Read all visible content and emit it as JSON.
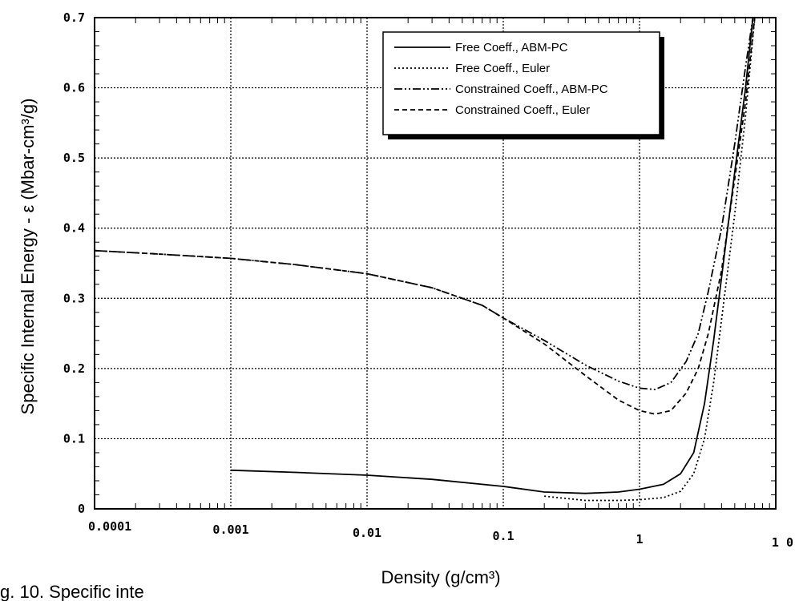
{
  "chart_data": {
    "type": "line",
    "xlabel": "Density (g/cm³)",
    "ylabel": "Specific Internal Energy - ε  (Mbar-cm³/g)",
    "xscale": "log",
    "xlim": [
      0.0001,
      10
    ],
    "ylim": [
      0,
      0.7
    ],
    "x_ticks": [
      0.0001,
      0.001,
      0.01,
      0.1,
      1,
      10
    ],
    "x_tick_labels": [
      "0.0001",
      "0.001",
      "0.01",
      "0.1",
      "1",
      "1 0"
    ],
    "y_ticks": [
      0,
      0.1,
      0.2,
      0.3,
      0.4,
      0.5,
      0.6,
      0.7
    ],
    "y_tick_labels": [
      "0",
      "0.1",
      "0.2",
      "0.3",
      "0.4",
      "0.5",
      "0.6",
      "0.7"
    ],
    "grid": true,
    "legend_position": "top-right",
    "caption_fragment": "g. 10.  Specific inte",
    "series": [
      {
        "name": "Free Coeff., ABM-PC",
        "style": "solid",
        "points": [
          [
            0.001,
            0.055
          ],
          [
            0.003,
            0.052
          ],
          [
            0.01,
            0.048
          ],
          [
            0.03,
            0.042
          ],
          [
            0.1,
            0.032
          ],
          [
            0.2,
            0.024
          ],
          [
            0.4,
            0.022
          ],
          [
            0.7,
            0.024
          ],
          [
            1,
            0.028
          ],
          [
            1.5,
            0.035
          ],
          [
            2,
            0.05
          ],
          [
            2.5,
            0.08
          ],
          [
            3,
            0.15
          ],
          [
            3.5,
            0.24
          ],
          [
            4,
            0.33
          ],
          [
            5,
            0.48
          ],
          [
            6,
            0.6
          ],
          [
            6.8,
            0.7
          ]
        ]
      },
      {
        "name": "Free Coeff., Euler",
        "style": "dotted",
        "points": [
          [
            0.2,
            0.018
          ],
          [
            0.4,
            0.012
          ],
          [
            0.7,
            0.012
          ],
          [
            1,
            0.013
          ],
          [
            1.5,
            0.016
          ],
          [
            2,
            0.025
          ],
          [
            2.5,
            0.05
          ],
          [
            3,
            0.1
          ],
          [
            3.5,
            0.18
          ],
          [
            4,
            0.27
          ],
          [
            5,
            0.42
          ],
          [
            6,
            0.56
          ],
          [
            7,
            0.7
          ]
        ]
      },
      {
        "name": "Constrained Coeff., ABM-PC",
        "style": "dash-dot-dot",
        "points": [
          [
            0.0001,
            0.368
          ],
          [
            0.0003,
            0.363
          ],
          [
            0.001,
            0.357
          ],
          [
            0.003,
            0.348
          ],
          [
            0.01,
            0.335
          ],
          [
            0.03,
            0.315
          ],
          [
            0.07,
            0.29
          ],
          [
            0.1,
            0.272
          ],
          [
            0.2,
            0.24
          ],
          [
            0.4,
            0.205
          ],
          [
            0.7,
            0.182
          ],
          [
            1,
            0.172
          ],
          [
            1.3,
            0.17
          ],
          [
            1.7,
            0.18
          ],
          [
            2.2,
            0.21
          ],
          [
            2.7,
            0.25
          ],
          [
            3.2,
            0.31
          ],
          [
            4,
            0.4
          ],
          [
            5,
            0.52
          ],
          [
            6,
            0.63
          ],
          [
            6.8,
            0.7
          ]
        ]
      },
      {
        "name": "Constrained Coeff., Euler",
        "style": "dashed",
        "points": [
          [
            0.0001,
            0.368
          ],
          [
            0.0003,
            0.363
          ],
          [
            0.001,
            0.357
          ],
          [
            0.003,
            0.348
          ],
          [
            0.01,
            0.335
          ],
          [
            0.03,
            0.315
          ],
          [
            0.07,
            0.29
          ],
          [
            0.1,
            0.272
          ],
          [
            0.2,
            0.235
          ],
          [
            0.4,
            0.19
          ],
          [
            0.7,
            0.155
          ],
          [
            1,
            0.14
          ],
          [
            1.3,
            0.135
          ],
          [
            1.7,
            0.14
          ],
          [
            2.2,
            0.165
          ],
          [
            2.7,
            0.2
          ],
          [
            3.2,
            0.25
          ],
          [
            4,
            0.34
          ],
          [
            5,
            0.47
          ],
          [
            6,
            0.58
          ],
          [
            7,
            0.7
          ]
        ]
      }
    ]
  }
}
